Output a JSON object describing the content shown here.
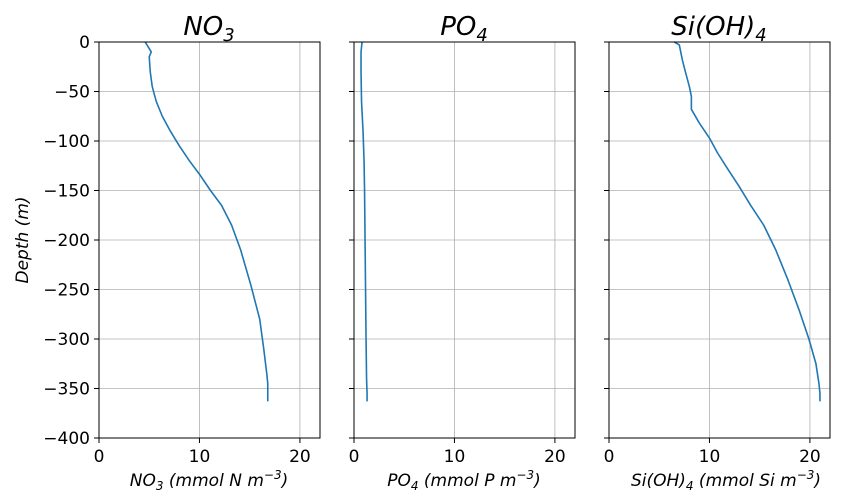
{
  "chart_data": [
    {
      "type": "line",
      "title": "NO3",
      "title_sub": "3",
      "xlabel": "NO3 (mmol N m-3)",
      "ylabel": "Depth (m)",
      "xlim": [
        0,
        22
      ],
      "ylim": [
        -400,
        0
      ],
      "xticks": [
        0,
        10,
        20
      ],
      "yticks": [
        0,
        -50,
        -100,
        -150,
        -200,
        -250,
        -300,
        -350,
        -400
      ],
      "grid": true,
      "color": "#1f77b4",
      "series": [
        {
          "x": [
            4.6,
            4.9,
            5.2,
            5.0,
            5.1,
            5.3,
            5.7,
            6.3,
            7.1,
            8.0,
            9.0,
            10.1,
            11.1,
            12.2,
            13.2,
            14.1,
            15.1,
            16.0,
            16.4,
            16.7,
            16.8,
            16.8
          ],
          "y": [
            0,
            -5,
            -10,
            -15,
            -30,
            -45,
            -60,
            -75,
            -90,
            -105,
            -120,
            -135,
            -150,
            -165,
            -185,
            -210,
            -245,
            -280,
            -310,
            -335,
            -345,
            -363
          ]
        }
      ]
    },
    {
      "type": "line",
      "title": "PO4",
      "xlabel": "PO4 (mmol P m-3)",
      "xlim": [
        0,
        22
      ],
      "ylim": [
        -400,
        0
      ],
      "xticks": [
        0,
        10,
        20
      ],
      "grid": true,
      "color": "#1f77b4",
      "series": [
        {
          "x": [
            0.8,
            0.7,
            0.7,
            0.75,
            0.9,
            1.0,
            1.05,
            1.1,
            1.15,
            1.2,
            1.25,
            1.3,
            1.3
          ],
          "y": [
            0,
            -10,
            -30,
            -60,
            -90,
            -120,
            -150,
            -200,
            -250,
            -300,
            -340,
            -355,
            -363
          ]
        }
      ]
    },
    {
      "type": "line",
      "title": "Si(OH)4",
      "xlabel": "Si(OH)4 (mmol Si m-3)",
      "xlim": [
        0,
        22
      ],
      "ylim": [
        -400,
        0
      ],
      "xticks": [
        0,
        10,
        20
      ],
      "grid": true,
      "color": "#1f77b4",
      "series": [
        {
          "x": [
            6.5,
            7.0,
            7.1,
            7.3,
            7.6,
            8.0,
            8.2,
            8.2,
            8.2,
            9.0,
            10.0,
            10.8,
            11.8,
            12.9,
            14.1,
            15.4,
            16.6,
            17.8,
            18.9,
            19.9,
            20.6,
            20.9,
            21.0,
            21.0
          ],
          "y": [
            0,
            -3,
            -8,
            -18,
            -30,
            -45,
            -55,
            -67,
            -68,
            -82,
            -97,
            -112,
            -128,
            -145,
            -165,
            -185,
            -210,
            -240,
            -270,
            -300,
            -325,
            -345,
            -355,
            -363
          ]
        }
      ]
    }
  ],
  "texts": {
    "panel_1": {
      "title_main": "NO",
      "title_sub": "3",
      "xlabel_pre": "NO",
      "xlabel_sub": "3",
      "xlabel_post": " (mmol N m",
      "xlabel_sup": "−3",
      "xlabel_end": ")"
    },
    "panel_2": {
      "title_main": "PO",
      "title_sub": "4",
      "xlabel_pre": "PO",
      "xlabel_sub": "4",
      "xlabel_post": " (mmol P m",
      "xlabel_sup": "−3",
      "xlabel_end": ")"
    },
    "panel_3": {
      "title_main": "Si(OH)",
      "title_sub": "4",
      "xlabel_pre": "Si(OH)",
      "xlabel_sub": "4",
      "xlabel_post": " (mmol Si m",
      "xlabel_sup": "−3",
      "xlabel_end": ")"
    },
    "ylabel": "Depth (m)"
  }
}
